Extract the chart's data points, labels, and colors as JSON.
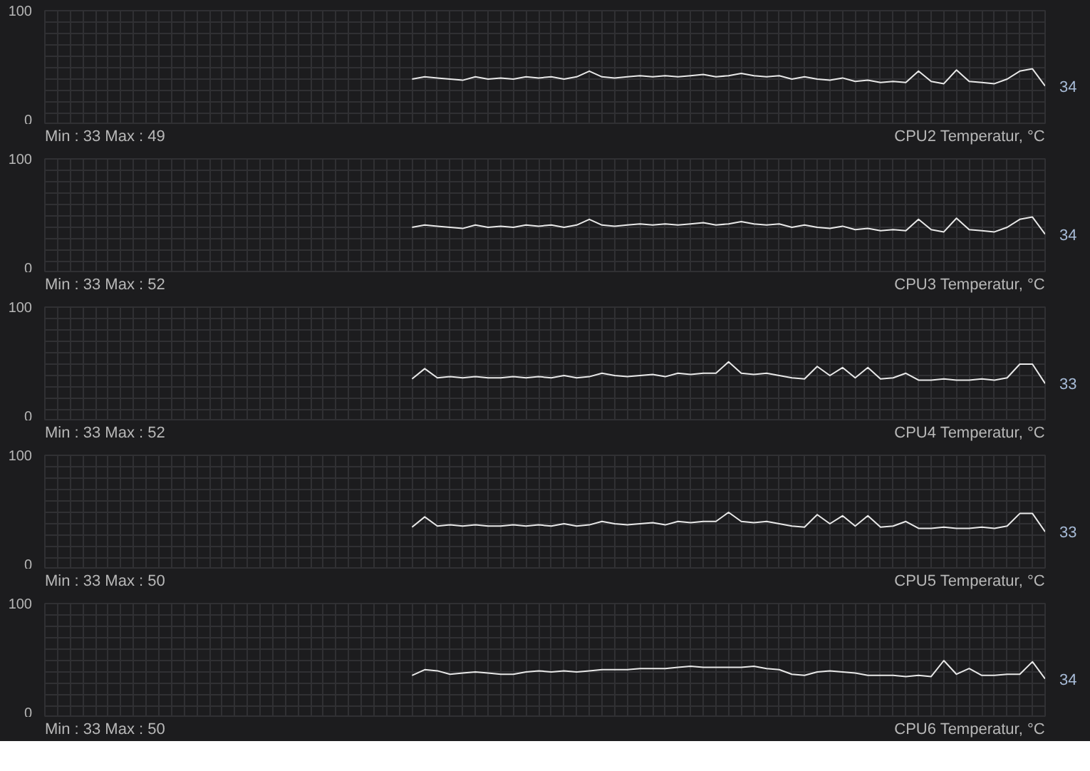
{
  "chart_data": [
    {
      "type": "line",
      "title": "CPU2 Temperatur, °C",
      "ylim": [
        0,
        100
      ],
      "yticks": [
        0,
        {
          "value": 10,
          "label": null
        },
        {
          "value": 20,
          "label": null
        },
        {
          "value": 30,
          "label": null
        },
        {
          "value": 40,
          "label": null
        },
        {
          "value": 50,
          "label": null
        },
        {
          "value": 60,
          "label": null
        },
        {
          "value": 70,
          "label": null
        },
        {
          "value": 80,
          "label": null
        },
        {
          "value": 90,
          "label": null
        },
        100
      ],
      "grid": true,
      "annotations": [
        "Min : 33  Max : 49"
      ],
      "categories": [
        null,
        null,
        null,
        null,
        null,
        null,
        null,
        null,
        null,
        null,
        null,
        null,
        null,
        null,
        null,
        null,
        null,
        null,
        null,
        null,
        null,
        null,
        null,
        null,
        null,
        null,
        null,
        null,
        null,
        null,
        null,
        null,
        null,
        null,
        null,
        null,
        null,
        null,
        null,
        null,
        null,
        null,
        null,
        null,
        null,
        null,
        null,
        null,
        null,
        null,
        null,
        null,
        null,
        null,
        null,
        null,
        null,
        null,
        null,
        null,
        null,
        null,
        null,
        null,
        null,
        null,
        null,
        null,
        null,
        null,
        null,
        null,
        null,
        null,
        null,
        null,
        null,
        null,
        null,
        null
      ],
      "series": [
        {
          "color": "#e8e8e8",
          "values": [
            null,
            null,
            null,
            null,
            null,
            null,
            null,
            null,
            null,
            null,
            null,
            null,
            null,
            null,
            null,
            null,
            null,
            null,
            null,
            null,
            null,
            null,
            null,
            null,
            null,
            null,
            null,
            null,
            null,
            40,
            42,
            41,
            40,
            39,
            42,
            40,
            41,
            40,
            42,
            41,
            42,
            40,
            42,
            47,
            42,
            41,
            42,
            43,
            42,
            43,
            42,
            43,
            44,
            42,
            43,
            45,
            43,
            42,
            43,
            40,
            42,
            40,
            39,
            41,
            38,
            39,
            37,
            38,
            37,
            47,
            38,
            36,
            48,
            38,
            37,
            36,
            40,
            47,
            49,
            34
          ],
          "value_labels": [
            null,
            null,
            null,
            null,
            null,
            null,
            null,
            null,
            null,
            null,
            null,
            null,
            null,
            null,
            null,
            null,
            null,
            null,
            null,
            null,
            null,
            null,
            null,
            null,
            null,
            null,
            null,
            null,
            null,
            null,
            null,
            null,
            null,
            null,
            null,
            null,
            null,
            null,
            null,
            null,
            null,
            null,
            null,
            null,
            null,
            null,
            null,
            null,
            null,
            null,
            null,
            null,
            null,
            null,
            null,
            null,
            null,
            null,
            null,
            null,
            null,
            null,
            null,
            null,
            null,
            null,
            null,
            null,
            null,
            null,
            null,
            null,
            null,
            null,
            null,
            null,
            null,
            null,
            null,
            "34"
          ]
        }
      ]
    },
    {
      "type": "line",
      "title": "CPU3 Temperatur, °C",
      "ylim": [
        0,
        100
      ],
      "yticks": [
        0,
        {
          "value": 10,
          "label": null
        },
        {
          "value": 20,
          "label": null
        },
        {
          "value": 30,
          "label": null
        },
        {
          "value": 40,
          "label": null
        },
        {
          "value": 50,
          "label": null
        },
        {
          "value": 60,
          "label": null
        },
        {
          "value": 70,
          "label": null
        },
        {
          "value": 80,
          "label": null
        },
        {
          "value": 90,
          "label": null
        },
        100
      ],
      "grid": true,
      "annotations": [
        "Min : 33  Max : 52"
      ],
      "categories": [
        null,
        null,
        null,
        null,
        null,
        null,
        null,
        null,
        null,
        null,
        null,
        null,
        null,
        null,
        null,
        null,
        null,
        null,
        null,
        null,
        null,
        null,
        null,
        null,
        null,
        null,
        null,
        null,
        null,
        null,
        null,
        null,
        null,
        null,
        null,
        null,
        null,
        null,
        null,
        null,
        null,
        null,
        null,
        null,
        null,
        null,
        null,
        null,
        null,
        null,
        null,
        null,
        null,
        null,
        null,
        null,
        null,
        null,
        null,
        null,
        null,
        null,
        null,
        null,
        null,
        null,
        null,
        null,
        null,
        null,
        null,
        null,
        null,
        null,
        null,
        null,
        null,
        null,
        null,
        null
      ],
      "series": [
        {
          "color": "#e8e8e8",
          "values": [
            null,
            null,
            null,
            null,
            null,
            null,
            null,
            null,
            null,
            null,
            null,
            null,
            null,
            null,
            null,
            null,
            null,
            null,
            null,
            null,
            null,
            null,
            null,
            null,
            null,
            null,
            null,
            null,
            null,
            40,
            42,
            41,
            40,
            39,
            42,
            40,
            41,
            40,
            42,
            41,
            42,
            40,
            42,
            47,
            42,
            41,
            42,
            43,
            42,
            43,
            42,
            43,
            44,
            42,
            43,
            45,
            43,
            42,
            43,
            40,
            42,
            40,
            39,
            41,
            38,
            39,
            37,
            38,
            37,
            47,
            38,
            36,
            48,
            38,
            37,
            36,
            40,
            47,
            49,
            34
          ],
          "value_labels": [
            null,
            null,
            null,
            null,
            null,
            null,
            null,
            null,
            null,
            null,
            null,
            null,
            null,
            null,
            null,
            null,
            null,
            null,
            null,
            null,
            null,
            null,
            null,
            null,
            null,
            null,
            null,
            null,
            null,
            null,
            null,
            null,
            null,
            null,
            null,
            null,
            null,
            null,
            null,
            null,
            null,
            null,
            null,
            null,
            null,
            null,
            null,
            null,
            null,
            null,
            null,
            null,
            null,
            null,
            null,
            null,
            null,
            null,
            null,
            null,
            null,
            null,
            null,
            null,
            null,
            null,
            null,
            null,
            null,
            null,
            null,
            null,
            null,
            null,
            null,
            null,
            null,
            null,
            null,
            "34"
          ]
        }
      ]
    },
    {
      "type": "line",
      "title": "CPU4 Temperatur, °C",
      "ylim": [
        0,
        100
      ],
      "yticks": [
        0,
        {
          "value": 10,
          "label": null
        },
        {
          "value": 20,
          "label": null
        },
        {
          "value": 30,
          "label": null
        },
        {
          "value": 40,
          "label": null
        },
        {
          "value": 50,
          "label": null
        },
        {
          "value": 60,
          "label": null
        },
        {
          "value": 70,
          "label": null
        },
        {
          "value": 80,
          "label": null
        },
        {
          "value": 90,
          "label": null
        },
        100
      ],
      "grid": true,
      "annotations": [
        "Min : 33  Max : 52"
      ],
      "categories": [
        null,
        null,
        null,
        null,
        null,
        null,
        null,
        null,
        null,
        null,
        null,
        null,
        null,
        null,
        null,
        null,
        null,
        null,
        null,
        null,
        null,
        null,
        null,
        null,
        null,
        null,
        null,
        null,
        null,
        null,
        null,
        null,
        null,
        null,
        null,
        null,
        null,
        null,
        null,
        null,
        null,
        null,
        null,
        null,
        null,
        null,
        null,
        null,
        null,
        null,
        null,
        null,
        null,
        null,
        null,
        null,
        null,
        null,
        null,
        null,
        null,
        null,
        null,
        null,
        null,
        null,
        null,
        null,
        null,
        null,
        null,
        null,
        null,
        null,
        null,
        null,
        null,
        null,
        null,
        null
      ],
      "series": [
        {
          "color": "#e8e8e8",
          "values": [
            null,
            null,
            null,
            null,
            null,
            null,
            null,
            null,
            null,
            null,
            null,
            null,
            null,
            null,
            null,
            null,
            null,
            null,
            null,
            null,
            null,
            null,
            null,
            null,
            null,
            null,
            null,
            null,
            null,
            37,
            46,
            38,
            39,
            38,
            39,
            38,
            38,
            39,
            38,
            39,
            38,
            40,
            38,
            39,
            42,
            40,
            39,
            40,
            41,
            39,
            42,
            41,
            42,
            42,
            52,
            42,
            41,
            42,
            40,
            38,
            37,
            48,
            40,
            47,
            38,
            47,
            37,
            38,
            42,
            36,
            36,
            37,
            36,
            36,
            37,
            36,
            38,
            50,
            50,
            33
          ],
          "value_labels": [
            null,
            null,
            null,
            null,
            null,
            null,
            null,
            null,
            null,
            null,
            null,
            null,
            null,
            null,
            null,
            null,
            null,
            null,
            null,
            null,
            null,
            null,
            null,
            null,
            null,
            null,
            null,
            null,
            null,
            null,
            null,
            null,
            null,
            null,
            null,
            null,
            null,
            null,
            null,
            null,
            null,
            null,
            null,
            null,
            null,
            null,
            null,
            null,
            null,
            null,
            null,
            null,
            null,
            null,
            null,
            null,
            null,
            null,
            null,
            null,
            null,
            null,
            null,
            null,
            null,
            null,
            null,
            null,
            null,
            null,
            null,
            null,
            null,
            null,
            null,
            null,
            null,
            null,
            null,
            "33"
          ]
        }
      ]
    },
    {
      "type": "line",
      "title": "CPU5 Temperatur, °C",
      "ylim": [
        0,
        100
      ],
      "yticks": [
        0,
        {
          "value": 10,
          "label": null
        },
        {
          "value": 20,
          "label": null
        },
        {
          "value": 30,
          "label": null
        },
        {
          "value": 40,
          "label": null
        },
        {
          "value": 50,
          "label": null
        },
        {
          "value": 60,
          "label": null
        },
        {
          "value": 70,
          "label": null
        },
        {
          "value": 80,
          "label": null
        },
        {
          "value": 90,
          "label": null
        },
        100
      ],
      "grid": true,
      "annotations": [
        "Min : 33  Max : 50"
      ],
      "categories": [
        null,
        null,
        null,
        null,
        null,
        null,
        null,
        null,
        null,
        null,
        null,
        null,
        null,
        null,
        null,
        null,
        null,
        null,
        null,
        null,
        null,
        null,
        null,
        null,
        null,
        null,
        null,
        null,
        null,
        null,
        null,
        null,
        null,
        null,
        null,
        null,
        null,
        null,
        null,
        null,
        null,
        null,
        null,
        null,
        null,
        null,
        null,
        null,
        null,
        null,
        null,
        null,
        null,
        null,
        null,
        null,
        null,
        null,
        null,
        null,
        null,
        null,
        null,
        null,
        null,
        null,
        null,
        null,
        null,
        null,
        null,
        null,
        null,
        null,
        null,
        null,
        null,
        null,
        null,
        null
      ],
      "series": [
        {
          "color": "#e8e8e8",
          "values": [
            null,
            null,
            null,
            null,
            null,
            null,
            null,
            null,
            null,
            null,
            null,
            null,
            null,
            null,
            null,
            null,
            null,
            null,
            null,
            null,
            null,
            null,
            null,
            null,
            null,
            null,
            null,
            null,
            null,
            37,
            46,
            38,
            39,
            38,
            39,
            38,
            38,
            39,
            38,
            39,
            38,
            40,
            38,
            39,
            42,
            40,
            39,
            40,
            41,
            39,
            42,
            41,
            42,
            42,
            50,
            42,
            41,
            42,
            40,
            38,
            37,
            48,
            40,
            47,
            38,
            47,
            37,
            38,
            42,
            36,
            36,
            37,
            36,
            36,
            37,
            36,
            38,
            49,
            49,
            33
          ],
          "value_labels": [
            null,
            null,
            null,
            null,
            null,
            null,
            null,
            null,
            null,
            null,
            null,
            null,
            null,
            null,
            null,
            null,
            null,
            null,
            null,
            null,
            null,
            null,
            null,
            null,
            null,
            null,
            null,
            null,
            null,
            null,
            null,
            null,
            null,
            null,
            null,
            null,
            null,
            null,
            null,
            null,
            null,
            null,
            null,
            null,
            null,
            null,
            null,
            null,
            null,
            null,
            null,
            null,
            null,
            null,
            null,
            null,
            null,
            null,
            null,
            null,
            null,
            null,
            null,
            null,
            null,
            null,
            null,
            null,
            null,
            null,
            null,
            null,
            null,
            null,
            null,
            null,
            null,
            null,
            null,
            "33"
          ]
        }
      ]
    },
    {
      "type": "line",
      "title": "CPU6 Temperatur, °C",
      "ylim": [
        0,
        100
      ],
      "yticks": [
        0,
        {
          "value": 10,
          "label": null
        },
        {
          "value": 20,
          "label": null
        },
        {
          "value": 30,
          "label": null
        },
        {
          "value": 40,
          "label": null
        },
        {
          "value": 50,
          "label": null
        },
        {
          "value": 60,
          "label": null
        },
        {
          "value": 70,
          "label": null
        },
        {
          "value": 80,
          "label": null
        },
        {
          "value": 90,
          "label": null
        },
        100
      ],
      "grid": true,
      "annotations": [
        "Min : 33  Max : 50"
      ],
      "categories": [
        null,
        null,
        null,
        null,
        null,
        null,
        null,
        null,
        null,
        null,
        null,
        null,
        null,
        null,
        null,
        null,
        null,
        null,
        null,
        null,
        null,
        null,
        null,
        null,
        null,
        null,
        null,
        null,
        null,
        null,
        null,
        null,
        null,
        null,
        null,
        null,
        null,
        null,
        null,
        null,
        null,
        null,
        null,
        null,
        null,
        null,
        null,
        null,
        null,
        null,
        null,
        null,
        null,
        null,
        null,
        null,
        null,
        null,
        null,
        null,
        null,
        null,
        null,
        null,
        null,
        null,
        null,
        null,
        null,
        null,
        null,
        null,
        null,
        null,
        null,
        null,
        null,
        null,
        null,
        null
      ],
      "series": [
        {
          "color": "#e8e8e8",
          "values": [
            null,
            null,
            null,
            null,
            null,
            null,
            null,
            null,
            null,
            null,
            null,
            null,
            null,
            null,
            null,
            null,
            null,
            null,
            null,
            null,
            null,
            null,
            null,
            null,
            null,
            null,
            null,
            null,
            null,
            37,
            42,
            41,
            38,
            39,
            40,
            39,
            38,
            38,
            40,
            41,
            40,
            41,
            40,
            41,
            42,
            42,
            42,
            43,
            43,
            43,
            44,
            45,
            44,
            44,
            44,
            44,
            45,
            43,
            42,
            38,
            37,
            40,
            41,
            40,
            39,
            37,
            37,
            37,
            36,
            37,
            36,
            50,
            38,
            43,
            37,
            37,
            38,
            38,
            49,
            34
          ],
          "value_labels": [
            null,
            null,
            null,
            null,
            null,
            null,
            null,
            null,
            null,
            null,
            null,
            null,
            null,
            null,
            null,
            null,
            null,
            null,
            null,
            null,
            null,
            null,
            null,
            null,
            null,
            null,
            null,
            null,
            null,
            null,
            null,
            null,
            null,
            null,
            null,
            null,
            null,
            null,
            null,
            null,
            null,
            null,
            null,
            null,
            null,
            null,
            null,
            null,
            null,
            null,
            null,
            null,
            null,
            null,
            null,
            null,
            null,
            null,
            null,
            null,
            null,
            null,
            null,
            null,
            null,
            null,
            null,
            null,
            null,
            null,
            null,
            null,
            null,
            null,
            null,
            null,
            null,
            null,
            null,
            "34"
          ]
        }
      ]
    }
  ]
}
